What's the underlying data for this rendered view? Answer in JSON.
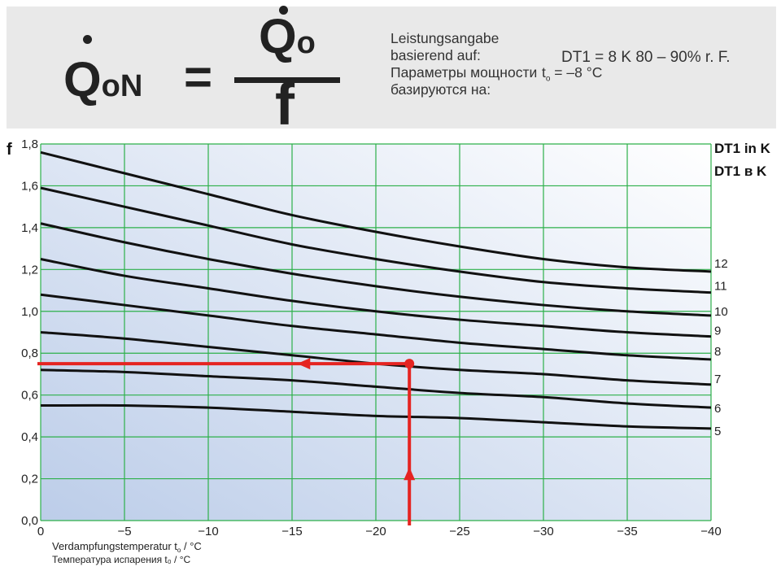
{
  "formula": {
    "lhs": "Q",
    "lhs_sub": "oN",
    "equals": "=",
    "numerator": "Q",
    "numerator_sub": "o",
    "denominator": "f"
  },
  "info": {
    "line1": "Leistungsangabe",
    "line2": "basierend auf:",
    "line3": "Параметры мощности",
    "line4": "базируются на:",
    "dt1_condition": "DT1 = 8 K 80 – 90% r. F.",
    "t0_prefix": "t",
    "t0_sub": "o",
    "t0_value": " = –8 °C"
  },
  "colors": {
    "grid": "#2db04a",
    "curve": "#111111",
    "marker": "#e52421",
    "bg_start": "#bccde9",
    "bg_end": "#ffffff"
  },
  "chart_data": {
    "type": "line",
    "ylabel": "f",
    "xlabel_de_prefix": "Verdampfungstemperatur t",
    "xlabel_de_sub": "o",
    "xlabel_de_suffix": " / °C",
    "xlabel_ru": "Температура испарения t₀ / °C",
    "legend_title_de": "DT1 in K",
    "legend_title_ru": "DT1 в K",
    "xlim": [
      0,
      -40
    ],
    "ylim": [
      0,
      1.8
    ],
    "x_ticks": [
      0,
      -5,
      -10,
      -15,
      -20,
      -25,
      -30,
      -35,
      -40
    ],
    "x_tick_labels": [
      "0",
      "−5",
      "−10",
      "−15",
      "−20",
      "−25",
      "−30",
      "−35",
      "−40"
    ],
    "y_ticks": [
      0,
      0.2,
      0.4,
      0.6,
      0.8,
      1.0,
      1.2,
      1.4,
      1.6,
      1.8
    ],
    "y_tick_labels": [
      "0,0",
      "0,2",
      "0,4",
      "0,6",
      "0,8",
      "1,0",
      "1,2",
      "1,4",
      "1,6",
      "1,8"
    ],
    "grid": true,
    "x": [
      0,
      -5,
      -10,
      -15,
      -20,
      -25,
      -30,
      -35,
      -40
    ],
    "series": [
      {
        "name": "12",
        "values": [
          1.76,
          1.66,
          1.56,
          1.46,
          1.38,
          1.31,
          1.25,
          1.21,
          1.19
        ]
      },
      {
        "name": "11",
        "values": [
          1.59,
          1.5,
          1.41,
          1.32,
          1.25,
          1.19,
          1.14,
          1.11,
          1.09
        ]
      },
      {
        "name": "10",
        "values": [
          1.42,
          1.33,
          1.25,
          1.18,
          1.12,
          1.07,
          1.03,
          1.0,
          0.98
        ]
      },
      {
        "name": "9",
        "values": [
          1.25,
          1.17,
          1.11,
          1.05,
          1.0,
          0.96,
          0.93,
          0.9,
          0.88
        ]
      },
      {
        "name": "8",
        "values": [
          1.08,
          1.03,
          0.98,
          0.93,
          0.89,
          0.85,
          0.82,
          0.79,
          0.77
        ]
      },
      {
        "name": "7",
        "values": [
          0.9,
          0.87,
          0.83,
          0.79,
          0.75,
          0.72,
          0.7,
          0.67,
          0.65
        ]
      },
      {
        "name": "6",
        "values": [
          0.72,
          0.71,
          0.69,
          0.67,
          0.64,
          0.61,
          0.59,
          0.56,
          0.54
        ]
      },
      {
        "name": "5",
        "values": [
          0.55,
          0.55,
          0.54,
          0.52,
          0.5,
          0.49,
          0.47,
          0.45,
          0.44
        ]
      }
    ],
    "example": {
      "x": -22,
      "y": 0.75
    }
  }
}
